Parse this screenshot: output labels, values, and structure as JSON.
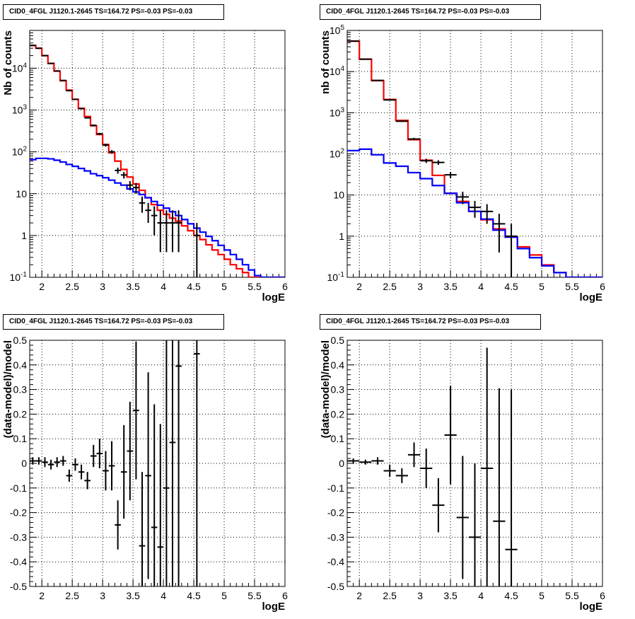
{
  "panels": [
    {
      "title": "CID0_4FGL J1120.1-2645 TS=164.72 PS=-0.03 PS=-0.03",
      "xlabel": "logE",
      "ylabel": "Nb of counts"
    },
    {
      "title": "CID0_4FGL J1120.1-2645 TS=164.72 PS=-0.03 PS=-0.03",
      "xlabel": "logE",
      "ylabel": "nb of counts"
    },
    {
      "title": "CID0_4FGL J1120.1-2645 TS=164.72 PS=-0.03 PS=-0.03",
      "xlabel": "logE",
      "ylabel": "(data-model)/model"
    },
    {
      "title": "CID0_4FGL J1120.1-2645 TS=164.72 PS=-0.03 PS=-0.03",
      "xlabel": "logE",
      "ylabel": "(data-model)/model"
    }
  ],
  "chart_data": [
    {
      "type": "line",
      "title": "CID0_4FGL J1120.1-2645 TS=164.72 PS=-0.03 PS=-0.03",
      "xlabel": "logE",
      "ylabel": "Nb of counts",
      "xlim": [
        1.8,
        6.0
      ],
      "ylim": [
        0.1,
        80000
      ],
      "yscale": "log",
      "grid": true,
      "x_ticks": [
        "2",
        "2.5",
        "3",
        "3.5",
        "4",
        "4.5",
        "5",
        "5.5",
        "6"
      ],
      "y_ticks": [
        "10^-1",
        "1",
        "10",
        "10^2",
        "10^3",
        "10^4"
      ],
      "bin_edges": [
        1.8,
        1.9,
        2.0,
        2.1,
        2.2,
        2.3,
        2.4,
        2.5,
        2.6,
        2.7,
        2.8,
        2.9,
        3.0,
        3.1,
        3.2,
        3.3,
        3.4,
        3.5,
        3.6,
        3.7,
        3.8,
        3.9,
        4.0,
        4.1,
        4.2,
        4.3,
        4.4,
        4.5,
        4.6,
        4.7,
        4.8,
        4.9,
        5.0,
        5.1,
        5.2,
        5.3,
        5.4,
        5.5,
        5.6,
        5.7,
        5.8,
        5.9,
        6.0
      ],
      "series": [
        {
          "color": "#ff0000",
          "style": "step",
          "values": [
            35000,
            30000,
            20000,
            13000,
            8500,
            5000,
            3000,
            1800,
            1100,
            700,
            420,
            260,
            150,
            95,
            60,
            38,
            25,
            17,
            12,
            8,
            5.5,
            4.0,
            3.2,
            2.6,
            2.2,
            1.7,
            1.3,
            1.0,
            0.8,
            0.6,
            0.45,
            0.35,
            0.27,
            0.2,
            0.16,
            0.13,
            0.1,
            0.1,
            0.1,
            0.1,
            0.1,
            0.1
          ]
        },
        {
          "color": "#0000ff",
          "style": "step",
          "values": [
            65,
            70,
            70,
            68,
            63,
            57,
            50,
            45,
            40,
            35,
            30,
            27,
            24,
            21,
            18,
            16,
            13,
            11,
            9.5,
            8,
            6.5,
            5.3,
            4.5,
            3.7,
            3.0,
            2.4,
            1.9,
            1.5,
            1.2,
            0.95,
            0.75,
            0.58,
            0.45,
            0.35,
            0.27,
            0.2,
            0.15,
            0.11,
            0.1,
            0.1,
            0.1,
            0.1
          ]
        },
        {
          "color": "#000000",
          "style": "errorbar",
          "points": [
            {
              "x": 1.85,
              "y": 35000,
              "err_lo": 200,
              "err_hi": 200
            },
            {
              "x": 1.95,
              "y": 30000,
              "err_lo": 180,
              "err_hi": 180
            },
            {
              "x": 2.05,
              "y": 20000,
              "err_lo": 140,
              "err_hi": 140
            },
            {
              "x": 2.15,
              "y": 13000,
              "err_lo": 110,
              "err_hi": 110
            },
            {
              "x": 2.25,
              "y": 8600,
              "err_lo": 90,
              "err_hi": 90
            },
            {
              "x": 2.35,
              "y": 5100,
              "err_lo": 70,
              "err_hi": 70
            },
            {
              "x": 2.45,
              "y": 2900,
              "err_lo": 55,
              "err_hi": 55
            },
            {
              "x": 2.55,
              "y": 1800,
              "err_lo": 42,
              "err_hi": 42
            },
            {
              "x": 2.65,
              "y": 1080,
              "err_lo": 33,
              "err_hi": 33
            },
            {
              "x": 2.75,
              "y": 650,
              "err_lo": 25,
              "err_hi": 25
            },
            {
              "x": 2.85,
              "y": 430,
              "err_lo": 21,
              "err_hi": 21
            },
            {
              "x": 2.95,
              "y": 270,
              "err_lo": 16,
              "err_hi": 16
            },
            {
              "x": 3.05,
              "y": 145,
              "err_lo": 12,
              "err_hi": 12
            },
            {
              "x": 3.15,
              "y": 100,
              "err_lo": 10,
              "err_hi": 10
            },
            {
              "x": 3.25,
              "y": 36,
              "err_lo": 6,
              "err_hi": 6
            },
            {
              "x": 3.35,
              "y": 28,
              "err_lo": 5,
              "err_hi": 5
            },
            {
              "x": 3.45,
              "y": 16,
              "err_lo": 4,
              "err_hi": 4
            },
            {
              "x": 3.55,
              "y": 14,
              "err_lo": 4,
              "err_hi": 4
            },
            {
              "x": 3.65,
              "y": 6,
              "err_lo": 2.5,
              "err_hi": 2.5
            },
            {
              "x": 3.75,
              "y": 4,
              "err_lo": 2,
              "err_hi": 2
            },
            {
              "x": 3.85,
              "y": 3,
              "err_lo": 2,
              "err_hi": 2
            },
            {
              "x": 3.95,
              "y": 2,
              "err_lo": 1.6,
              "err_hi": 2
            },
            {
              "x": 4.05,
              "y": 2,
              "err_lo": 1.6,
              "err_hi": 2
            },
            {
              "x": 4.15,
              "y": 2,
              "err_lo": 1.6,
              "err_hi": 2
            },
            {
              "x": 4.25,
              "y": 2,
              "err_lo": 1.6,
              "err_hi": 2
            },
            {
              "x": 4.55,
              "y": 1,
              "err_lo": 0.9,
              "err_hi": 1
            }
          ]
        }
      ]
    },
    {
      "type": "line",
      "title": "CID0_4FGL J1120.1-2645 TS=164.72 PS=-0.03 PS=-0.03",
      "xlabel": "logE",
      "ylabel": "nb of counts",
      "xlim": [
        1.8,
        6.0
      ],
      "ylim": [
        0.1,
        100000
      ],
      "yscale": "log",
      "grid": true,
      "x_ticks": [
        "2",
        "2.5",
        "3",
        "3.5",
        "4",
        "4.5",
        "5",
        "5.5",
        "6"
      ],
      "y_ticks": [
        "10^-1",
        "1",
        "10",
        "10^2",
        "10^3",
        "10^4",
        "10^5"
      ],
      "bin_edges": [
        1.8,
        2.0,
        2.2,
        2.4,
        2.6,
        2.8,
        3.0,
        3.2,
        3.4,
        3.6,
        3.8,
        4.0,
        4.2,
        4.4,
        4.6,
        4.8,
        5.0,
        5.2,
        5.4,
        5.6,
        5.8,
        6.0
      ],
      "series": [
        {
          "color": "#ff0000",
          "style": "step",
          "values": [
            55000,
            20000,
            6000,
            2100,
            650,
            220,
            70,
            30,
            11,
            7,
            4,
            2.5,
            1.5,
            0.95,
            0.55,
            0.35,
            0.2,
            0.13,
            0.1,
            0.1,
            0.1
          ]
        },
        {
          "color": "#0000ff",
          "style": "step",
          "values": [
            120,
            130,
            95,
            60,
            50,
            35,
            25,
            17,
            11,
            6.5,
            4,
            2.6,
            1.4,
            0.95,
            0.5,
            0.3,
            0.19,
            0.13,
            0.1,
            0.1,
            0.1
          ]
        },
        {
          "color": "#000000",
          "style": "errorbar",
          "points": [
            {
              "x": 1.9,
              "y": 55000,
              "err_lo": 240,
              "err_hi": 240
            },
            {
              "x": 2.1,
              "y": 20000,
              "err_lo": 140,
              "err_hi": 140
            },
            {
              "x": 2.3,
              "y": 6100,
              "err_lo": 78,
              "err_hi": 78
            },
            {
              "x": 2.5,
              "y": 2050,
              "err_lo": 45,
              "err_hi": 45
            },
            {
              "x": 2.7,
              "y": 620,
              "err_lo": 25,
              "err_hi": 25
            },
            {
              "x": 2.9,
              "y": 230,
              "err_lo": 15,
              "err_hi": 15
            },
            {
              "x": 3.1,
              "y": 68,
              "err_lo": 8,
              "err_hi": 8
            },
            {
              "x": 3.3,
              "y": 62,
              "err_lo": 8,
              "err_hi": 8
            },
            {
              "x": 3.5,
              "y": 31,
              "err_lo": 5.5,
              "err_hi": 5.5
            },
            {
              "x": 3.7,
              "y": 9,
              "err_lo": 3,
              "err_hi": 3
            },
            {
              "x": 3.9,
              "y": 5,
              "err_lo": 2.2,
              "err_hi": 2.2
            },
            {
              "x": 4.1,
              "y": 4,
              "err_lo": 2,
              "err_hi": 2
            },
            {
              "x": 4.3,
              "y": 2,
              "err_lo": 1.6,
              "err_hi": 1.5
            },
            {
              "x": 4.5,
              "y": 1,
              "err_lo": 0.9,
              "err_hi": 1
            }
          ]
        }
      ]
    },
    {
      "type": "scatter",
      "title": "CID0_4FGL J1120.1-2645 TS=164.72 PS=-0.03 PS=-0.03",
      "xlabel": "logE",
      "ylabel": "(data-model)/model",
      "xlim": [
        1.8,
        6.0
      ],
      "ylim": [
        -0.5,
        0.5
      ],
      "grid": true,
      "x_ticks": [
        "2",
        "2.5",
        "3",
        "3.5",
        "4",
        "4.5",
        "5",
        "5.5",
        "6"
      ],
      "y_ticks": [
        "-0.5",
        "-0.4",
        "-0.3",
        "-0.2",
        "-0.1",
        "0",
        "0.1",
        "0.2",
        "0.3",
        "0.4",
        "0.5"
      ],
      "series": [
        {
          "color": "#000000",
          "style": "errorbar",
          "points": [
            {
              "x": 1.85,
              "y": 0.01,
              "err": 0.015
            },
            {
              "x": 1.95,
              "y": 0.01,
              "err": 0.015
            },
            {
              "x": 2.05,
              "y": 0.005,
              "err": 0.02
            },
            {
              "x": 2.15,
              "y": -0.005,
              "err": 0.02
            },
            {
              "x": 2.25,
              "y": 0.005,
              "err": 0.02
            },
            {
              "x": 2.35,
              "y": 0.01,
              "err": 0.02
            },
            {
              "x": 2.45,
              "y": -0.05,
              "err": 0.025
            },
            {
              "x": 2.55,
              "y": -0.005,
              "err": 0.025
            },
            {
              "x": 2.65,
              "y": -0.035,
              "err": 0.03
            },
            {
              "x": 2.75,
              "y": -0.07,
              "err": 0.035
            },
            {
              "x": 2.85,
              "y": 0.03,
              "err": 0.045
            },
            {
              "x": 2.95,
              "y": 0.04,
              "err": 0.06
            },
            {
              "x": 3.05,
              "y": -0.03,
              "err": 0.08
            },
            {
              "x": 3.15,
              "y": -0.01,
              "err": 0.1
            },
            {
              "x": 3.25,
              "y": -0.25,
              "err": 0.1
            },
            {
              "x": 3.35,
              "y": -0.035,
              "err": 0.19
            },
            {
              "x": 3.45,
              "y": 0.05,
              "err": 0.2
            },
            {
              "x": 3.55,
              "y": 0.215,
              "err": 0.28
            },
            {
              "x": 3.65,
              "y": -0.335,
              "err": 0.3
            },
            {
              "x": 3.75,
              "y": -0.05,
              "err": 0.42
            },
            {
              "x": 3.85,
              "y": -0.26,
              "err": 0.5
            },
            {
              "x": 3.95,
              "y": -0.34,
              "err": 0.5
            },
            {
              "x": 4.05,
              "y": -0.1,
              "err": 0.65
            },
            {
              "x": 4.15,
              "y": 0.085,
              "err": 0.75
            },
            {
              "x": 4.25,
              "y": 0.395,
              "err": 0.95
            },
            {
              "x": 4.55,
              "y": 0.445,
              "err": 1.0
            }
          ]
        }
      ]
    },
    {
      "type": "scatter",
      "title": "CID0_4FGL J1120.1-2645 TS=164.72 PS=-0.03 PS=-0.03",
      "xlabel": "logE",
      "ylabel": "(data-model)/model",
      "xlim": [
        1.8,
        6.0
      ],
      "ylim": [
        -0.5,
        0.5
      ],
      "grid": true,
      "x_ticks": [
        "2",
        "2.5",
        "3",
        "3.5",
        "4",
        "4.5",
        "5",
        "5.5",
        "6"
      ],
      "y_ticks": [
        "-0.5",
        "-0.4",
        "-0.3",
        "-0.2",
        "-0.1",
        "0",
        "0.1",
        "0.2",
        "0.3",
        "0.4",
        "0.5"
      ],
      "series": [
        {
          "color": "#000000",
          "style": "errorbar",
          "points": [
            {
              "x": 1.9,
              "y": 0.01,
              "err": 0.01
            },
            {
              "x": 2.1,
              "y": 0.005,
              "err": 0.01
            },
            {
              "x": 2.3,
              "y": 0.01,
              "err": 0.015
            },
            {
              "x": 2.5,
              "y": -0.03,
              "err": 0.025
            },
            {
              "x": 2.7,
              "y": -0.05,
              "err": 0.03
            },
            {
              "x": 2.9,
              "y": 0.035,
              "err": 0.05
            },
            {
              "x": 3.1,
              "y": -0.02,
              "err": 0.08
            },
            {
              "x": 3.3,
              "y": -0.17,
              "err": 0.11
            },
            {
              "x": 3.5,
              "y": 0.115,
              "err": 0.2
            },
            {
              "x": 3.7,
              "y": -0.22,
              "err": 0.25
            },
            {
              "x": 3.9,
              "y": -0.3,
              "err": 0.3
            },
            {
              "x": 4.1,
              "y": -0.02,
              "err": 0.49
            },
            {
              "x": 4.3,
              "y": -0.235,
              "err": 0.54
            },
            {
              "x": 4.5,
              "y": -0.35,
              "err": 0.65
            }
          ]
        }
      ]
    }
  ]
}
